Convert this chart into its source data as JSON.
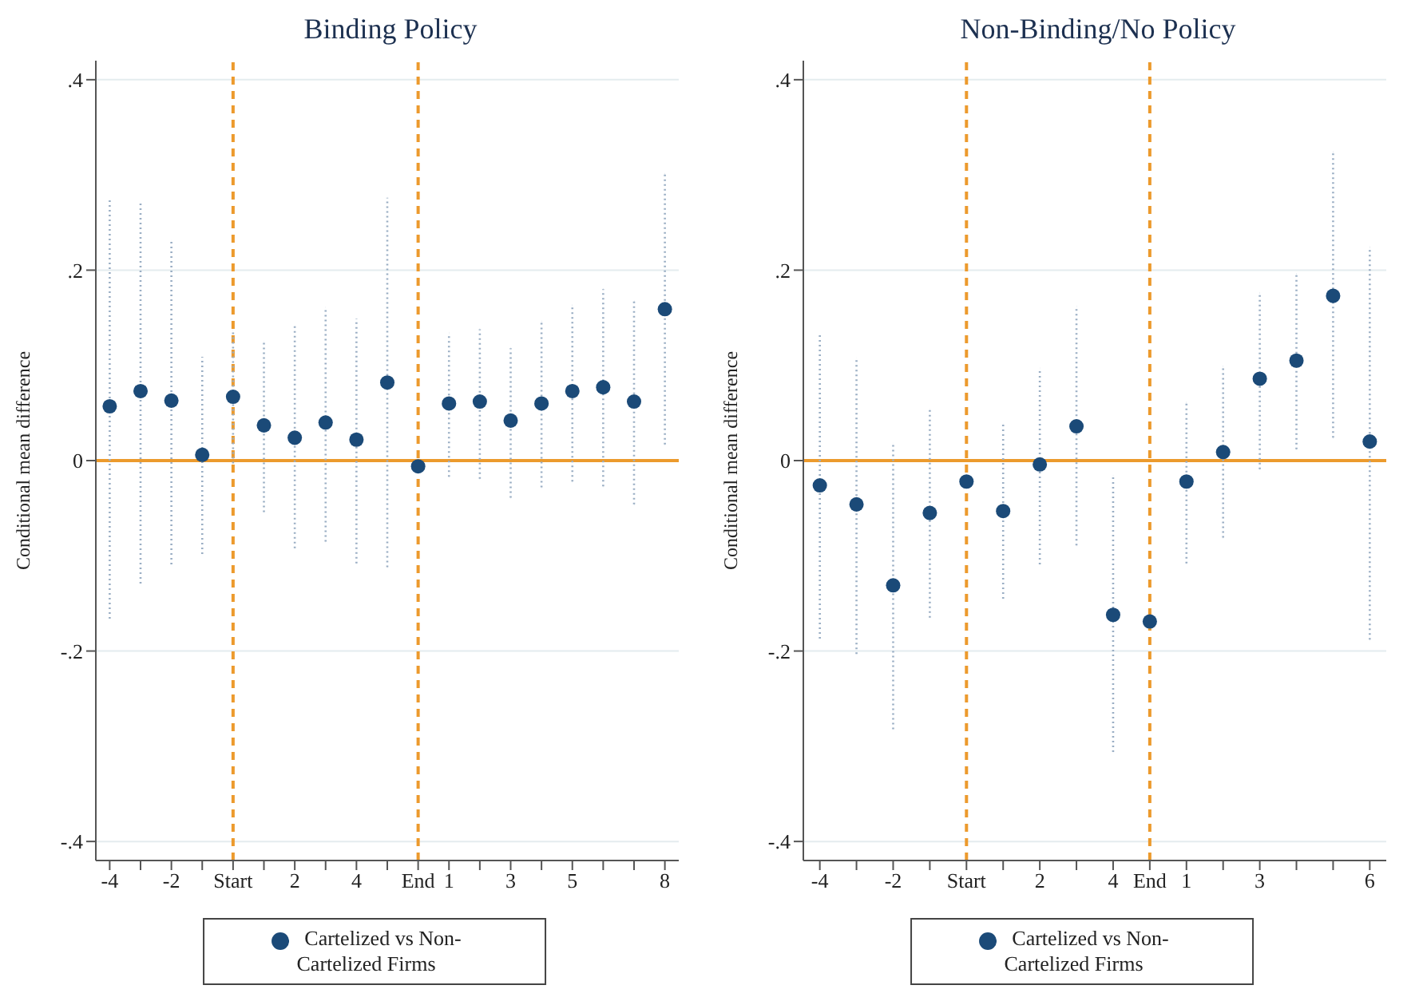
{
  "chart_data": [
    {
      "type": "scatter",
      "title": "Binding Policy",
      "ylabel": "Conditional mean difference",
      "categories": [
        "-4",
        null,
        "-2",
        null,
        "Start",
        null,
        "2",
        null,
        "4",
        null,
        "End",
        "1",
        null,
        "3",
        null,
        "5",
        null,
        null,
        "8"
      ],
      "series": [
        {
          "name": "Cartelized vs Non-Cartelized Firms",
          "color": "#1b4a78",
          "values": [
            0.057,
            0.073,
            0.063,
            0.006,
            0.067,
            0.037,
            0.024,
            0.04,
            0.022,
            0.082,
            -0.006,
            0.06,
            0.062,
            0.042,
            0.06,
            0.073,
            0.077,
            0.062,
            0.159
          ],
          "errors": [
            [
              -0.166,
              0.274
            ],
            [
              -0.129,
              0.271
            ],
            [
              -0.109,
              0.231
            ],
            [
              -0.098,
              0.109
            ],
            [
              -0.003,
              0.137
            ],
            [
              -0.054,
              0.125
            ],
            [
              -0.092,
              0.141
            ],
            [
              -0.085,
              0.161
            ],
            [
              -0.108,
              0.149
            ],
            [
              -0.112,
              0.276
            ],
            null,
            [
              -0.017,
              0.134
            ],
            [
              -0.019,
              0.138
            ],
            [
              -0.039,
              0.118
            ],
            [
              -0.028,
              0.146
            ],
            [
              -0.022,
              0.163
            ],
            [
              -0.027,
              0.18
            ],
            [
              -0.046,
              0.167
            ],
            [
              0.017,
              0.301
            ]
          ]
        }
      ],
      "ylim": [
        -0.42,
        0.42
      ],
      "yticks": [
        {
          "value": -0.4,
          "label": "-.4"
        },
        {
          "value": -0.2,
          "label": "-.2"
        },
        0,
        {
          "value": 0.2,
          "label": ".2"
        },
        {
          "value": 0.4,
          "label": ".4"
        }
      ],
      "ref_lines": [
        {
          "axis": "y",
          "value": 0,
          "color": "#ec9a2d",
          "line_style": "solid"
        },
        {
          "axis": "x",
          "value": "Start",
          "color": "#ec9a2d",
          "line_style": "dashed"
        },
        {
          "axis": "x",
          "value": "End",
          "color": "#ec9a2d",
          "line_style": "dashed"
        }
      ],
      "grid": "y",
      "legend": "bottom",
      "marker": "circle"
    },
    {
      "type": "scatter",
      "title": "Non-Binding/No Policy",
      "ylabel": "Conditional mean difference",
      "categories": [
        "-4",
        null,
        "-2",
        null,
        "Start",
        null,
        "2",
        null,
        "4",
        "End",
        "1",
        null,
        "3",
        null,
        null,
        "6"
      ],
      "series": [
        {
          "name": "Cartelized vs Non-Cartelized Firms",
          "color": "#1b4a78",
          "values": [
            -0.026,
            -0.046,
            -0.131,
            -0.055,
            -0.022,
            -0.053,
            -0.004,
            0.036,
            -0.162,
            -0.169,
            -0.022,
            0.009,
            0.086,
            0.105,
            0.173,
            0.02
          ],
          "errors": [
            [
              -0.187,
              0.132
            ],
            [
              -0.203,
              0.108
            ],
            [
              -0.282,
              0.018
            ],
            [
              -0.165,
              0.054
            ],
            null,
            [
              -0.145,
              0.038
            ],
            [
              -0.109,
              0.097
            ],
            [
              -0.089,
              0.162
            ],
            [
              -0.306,
              -0.016
            ],
            null,
            [
              -0.108,
              0.061
            ],
            [
              -0.081,
              0.099
            ],
            [
              -0.009,
              0.176
            ],
            [
              0.012,
              0.196
            ],
            [
              0.024,
              0.324
            ],
            [
              -0.188,
              0.224
            ]
          ]
        }
      ],
      "ylim": [
        -0.42,
        0.42
      ],
      "yticks": [
        {
          "value": -0.4,
          "label": "-.4"
        },
        {
          "value": -0.2,
          "label": "-.2"
        },
        0,
        {
          "value": 0.2,
          "label": ".2"
        },
        {
          "value": 0.4,
          "label": ".4"
        }
      ],
      "ref_lines": [
        {
          "axis": "y",
          "value": 0,
          "color": "#ec9a2d",
          "line_style": "solid"
        },
        {
          "axis": "x",
          "value": "Start",
          "color": "#ec9a2d",
          "line_style": "dashed"
        },
        {
          "axis": "x",
          "value": "End",
          "color": "#ec9a2d",
          "line_style": "dashed"
        }
      ],
      "grid": "y",
      "legend": "bottom",
      "marker": "circle"
    }
  ]
}
